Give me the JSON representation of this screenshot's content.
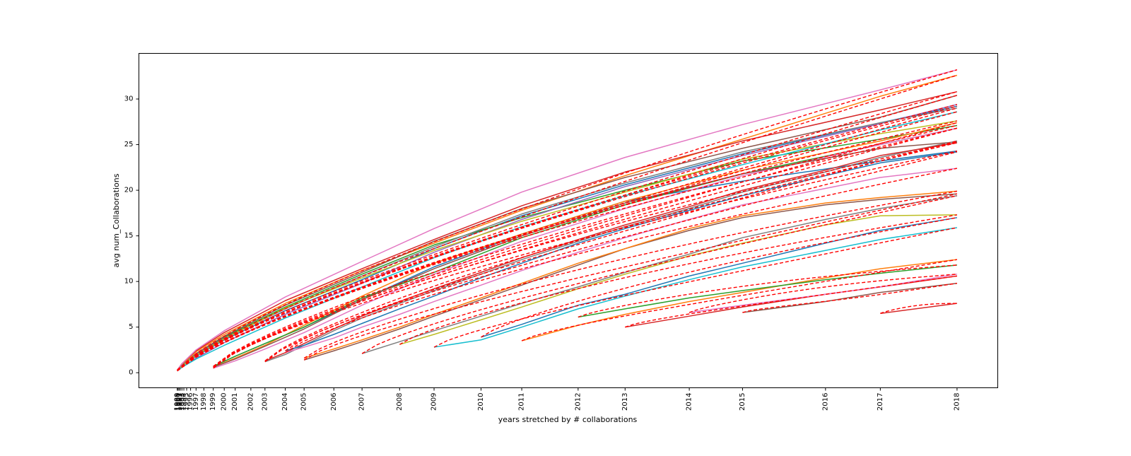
{
  "chart_data": {
    "type": "line",
    "title": "",
    "xlabel": "years stretched by # collaborations",
    "ylabel": "avg num_Collaborations",
    "x_ticks": [
      {
        "label": "1989",
        "pos": 0.0
      },
      {
        "label": "1990",
        "pos": 0.05
      },
      {
        "label": "1991",
        "pos": 0.12
      },
      {
        "label": "1992",
        "pos": 0.2
      },
      {
        "label": "1993",
        "pos": 0.3
      },
      {
        "label": "1994",
        "pos": 0.42
      },
      {
        "label": "1995",
        "pos": 0.6
      },
      {
        "label": "1996",
        "pos": 0.85
      },
      {
        "label": "1997",
        "pos": 1.2
      },
      {
        "label": "1998",
        "pos": 1.7
      },
      {
        "label": "1999",
        "pos": 2.3
      },
      {
        "label": "2000",
        "pos": 3.0
      },
      {
        "label": "2001",
        "pos": 3.7
      },
      {
        "label": "2002",
        "pos": 4.7
      },
      {
        "label": "2003",
        "pos": 5.6
      },
      {
        "label": "2004",
        "pos": 6.9
      },
      {
        "label": "2005",
        "pos": 8.1
      },
      {
        "label": "2006",
        "pos": 10.0
      },
      {
        "label": "2007",
        "pos": 11.8
      },
      {
        "label": "2008",
        "pos": 14.2
      },
      {
        "label": "2009",
        "pos": 16.4
      },
      {
        "label": "2010",
        "pos": 19.4
      },
      {
        "label": "2011",
        "pos": 22.0
      },
      {
        "label": "2012",
        "pos": 25.6
      },
      {
        "label": "2013",
        "pos": 28.6
      },
      {
        "label": "2014",
        "pos": 32.7
      },
      {
        "label": "2015",
        "pos": 36.1
      },
      {
        "label": "2016",
        "pos": 41.4
      },
      {
        "label": "2017",
        "pos": 44.9
      },
      {
        "label": "2018",
        "pos": 49.8
      }
    ],
    "xlim": [
      -2.45,
      52.4
    ],
    "y_ticks": [
      0,
      5,
      10,
      15,
      20,
      25,
      30
    ],
    "ylim": [
      -1.65,
      35.0
    ],
    "grid": false,
    "fit_color": "#ff0000",
    "series": [
      {
        "color": "#1f77b4",
        "x": [
          0.0,
          0.3,
          1.2,
          3.0,
          6.9,
          11.8,
          16.4,
          22.0,
          28.6,
          36.1,
          44.9,
          49.8
        ],
        "y": [
          0.3,
          0.8,
          1.8,
          3.6,
          6.8,
          10.2,
          13.6,
          17.2,
          20.6,
          24.0,
          27.4,
          29.2
        ]
      },
      {
        "color": "#ff7f0e",
        "x": [
          0.0,
          0.3,
          1.2,
          3.0,
          6.9,
          11.8,
          16.4,
          22.0,
          28.6,
          36.1,
          44.9,
          49.8
        ],
        "y": [
          0.2,
          0.9,
          2.3,
          4.2,
          7.6,
          11.2,
          14.2,
          17.8,
          21.6,
          25.6,
          30.3,
          32.6
        ]
      },
      {
        "color": "#2ca02c",
        "x": [
          0.0,
          0.3,
          1.2,
          3.0,
          6.9,
          11.8,
          16.4,
          22.0,
          28.6,
          36.1,
          44.9,
          49.8
        ],
        "y": [
          0.2,
          0.7,
          2.0,
          3.9,
          7.2,
          10.8,
          14.0,
          17.0,
          20.0,
          23.2,
          25.6,
          27.1
        ]
      },
      {
        "color": "#d62728",
        "x": [
          0.0,
          0.3,
          1.2,
          3.0,
          6.9,
          11.8,
          16.4,
          22.0,
          28.6,
          36.1,
          44.9,
          49.8
        ],
        "y": [
          0.3,
          1.0,
          2.4,
          4.4,
          7.9,
          11.4,
          14.6,
          18.3,
          22.0,
          25.4,
          28.8,
          30.8
        ]
      },
      {
        "color": "#9467bd",
        "x": [
          0.0,
          0.3,
          1.2,
          3.0,
          6.9,
          11.8,
          16.4,
          22.0,
          28.6,
          36.1,
          44.9,
          49.8
        ],
        "y": [
          0.2,
          0.6,
          1.6,
          3.3,
          6.4,
          9.8,
          13.2,
          16.8,
          20.4,
          23.8,
          27.3,
          29.4
        ]
      },
      {
        "color": "#8c564b",
        "x": [
          0.0,
          0.3,
          1.2,
          3.0,
          6.9,
          11.8,
          16.4,
          22.0,
          28.6,
          36.1,
          44.9,
          49.8
        ],
        "y": [
          0.2,
          0.8,
          2.1,
          4.0,
          7.4,
          11.0,
          14.4,
          18.0,
          21.4,
          24.6,
          28.0,
          30.4
        ]
      },
      {
        "color": "#e377c2",
        "x": [
          0.0,
          0.3,
          1.2,
          3.0,
          6.9,
          11.8,
          16.4,
          22.0,
          28.6,
          36.1,
          44.9,
          49.8
        ],
        "y": [
          0.3,
          1.0,
          2.5,
          4.6,
          8.3,
          12.2,
          15.8,
          19.8,
          23.6,
          27.2,
          31.0,
          33.2
        ]
      },
      {
        "color": "#7f7f7f",
        "x": [
          0.0,
          0.3,
          1.2,
          3.0,
          6.9,
          11.8,
          16.4,
          22.0,
          28.6,
          36.1,
          44.9,
          49.8
        ],
        "y": [
          0.2,
          0.8,
          2.0,
          3.8,
          7.0,
          10.6,
          13.8,
          17.4,
          20.8,
          24.2,
          27.4,
          29.0
        ]
      },
      {
        "color": "#bcbd22",
        "x": [
          0.0,
          0.3,
          1.2,
          3.0,
          6.9,
          11.8,
          16.4,
          22.0,
          28.6,
          36.1,
          44.9,
          49.8
        ],
        "y": [
          0.2,
          0.7,
          1.9,
          3.7,
          7.1,
          10.4,
          13.4,
          16.6,
          19.8,
          23.4,
          26.2,
          27.6
        ]
      },
      {
        "color": "#17becf",
        "x": [
          0.0,
          0.3,
          1.2,
          3.0,
          6.9,
          11.8,
          16.4,
          22.0,
          28.6,
          36.1,
          44.9,
          49.8
        ],
        "y": [
          0.2,
          0.6,
          1.5,
          3.0,
          6.0,
          9.4,
          12.6,
          16.0,
          19.4,
          22.8,
          26.6,
          28.6
        ]
      },
      {
        "color": "#1f77b4",
        "x": [
          2.3,
          3.7,
          5.6,
          8.1,
          11.8,
          16.4,
          22.0,
          28.6,
          36.1,
          44.9,
          49.8
        ],
        "y": [
          0.7,
          1.8,
          3.2,
          5.0,
          8.0,
          11.6,
          15.2,
          18.8,
          21.0,
          23.2,
          24.3
        ]
      },
      {
        "color": "#ff7f0e",
        "x": [
          2.3,
          3.7,
          5.6,
          8.1,
          11.8,
          16.4,
          22.0,
          28.6,
          36.1,
          44.9,
          49.8
        ],
        "y": [
          0.6,
          1.6,
          3.0,
          5.2,
          8.4,
          12.0,
          15.2,
          18.8,
          22.2,
          25.4,
          27.4
        ]
      },
      {
        "color": "#2ca02c",
        "x": [
          2.3,
          3.7,
          5.6,
          8.1,
          11.8,
          16.4,
          22.0,
          28.6,
          36.1,
          44.9,
          49.8
        ],
        "y": [
          0.7,
          1.8,
          3.2,
          5.0,
          8.2,
          11.0,
          14.8,
          18.4,
          21.8,
          25.0,
          26.8
        ]
      },
      {
        "color": "#e377c2",
        "x": [
          2.3,
          3.7,
          5.6,
          8.1,
          11.8,
          16.4,
          22.0,
          28.6,
          36.1,
          44.9,
          49.8
        ],
        "y": [
          0.5,
          1.3,
          2.6,
          4.4,
          7.4,
          10.8,
          14.4,
          18.0,
          21.6,
          25.0,
          26.8
        ]
      },
      {
        "color": "#8c564b",
        "x": [
          2.3,
          3.7,
          5.6,
          8.1,
          11.8,
          16.4,
          22.0,
          28.6,
          36.1,
          44.9,
          49.8
        ],
        "y": [
          0.6,
          1.5,
          2.9,
          4.8,
          8.0,
          11.4,
          15.0,
          18.6,
          21.8,
          24.6,
          25.3
        ]
      },
      {
        "color": "#7f7f7f",
        "x": [
          5.6,
          6.9,
          8.1,
          10.0,
          11.8,
          14.2,
          16.4,
          19.4,
          22.0,
          25.6,
          28.6,
          32.7,
          36.1,
          41.4,
          44.9,
          49.8
        ],
        "y": [
          1.2,
          2.0,
          3.0,
          4.6,
          6.0,
          7.6,
          9.0,
          10.8,
          12.4,
          14.4,
          16.0,
          18.0,
          19.8,
          22.0,
          23.6,
          25.4
        ]
      },
      {
        "color": "#d62728",
        "x": [
          5.6,
          6.9,
          8.1,
          10.0,
          11.8,
          14.2,
          16.4,
          19.4,
          22.0,
          25.6,
          28.6,
          32.7,
          36.1,
          41.4,
          44.9,
          49.8
        ],
        "y": [
          1.3,
          2.2,
          3.2,
          4.8,
          6.2,
          7.8,
          9.2,
          11.0,
          12.6,
          14.6,
          16.2,
          18.2,
          20.0,
          22.2,
          23.8,
          25.2
        ]
      },
      {
        "color": "#1f77b4",
        "x": [
          6.9,
          8.1,
          10.0,
          11.8,
          14.2,
          16.4,
          19.4,
          22.0,
          25.6,
          28.6,
          32.7,
          36.1,
          41.4,
          44.9,
          49.8
        ],
        "y": [
          2.4,
          3.0,
          4.2,
          5.4,
          7.0,
          8.4,
          10.4,
          12.0,
          14.2,
          15.8,
          17.8,
          19.4,
          21.6,
          23.0,
          24.2
        ]
      },
      {
        "color": "#e377c2",
        "x": [
          6.9,
          8.1,
          10.0,
          11.8,
          14.2,
          16.4,
          19.4,
          22.0,
          25.6,
          28.6,
          32.7,
          36.1,
          41.4,
          44.9,
          49.8
        ],
        "y": [
          2.2,
          2.8,
          3.8,
          5.0,
          6.4,
          7.8,
          9.6,
          11.2,
          13.2,
          14.8,
          16.8,
          18.4,
          20.2,
          21.4,
          22.4
        ]
      },
      {
        "color": "#8c564b",
        "x": [
          8.1,
          10.0,
          11.8,
          14.2,
          16.4,
          19.4,
          22.0,
          25.6,
          28.6,
          32.7,
          36.1,
          41.4,
          44.9,
          49.8
        ],
        "y": [
          1.4,
          2.4,
          3.4,
          4.8,
          6.2,
          8.0,
          9.6,
          11.8,
          13.6,
          15.6,
          17.0,
          18.4,
          19.0,
          19.6
        ]
      },
      {
        "color": "#ff7f0e",
        "x": [
          8.1,
          10.0,
          11.8,
          14.2,
          16.4,
          19.4,
          22.0,
          25.6,
          28.6,
          32.7,
          36.1,
          41.4,
          44.9,
          49.8
        ],
        "y": [
          1.6,
          2.6,
          3.6,
          5.0,
          6.4,
          8.2,
          9.8,
          12.0,
          13.6,
          15.8,
          17.2,
          18.6,
          19.2,
          19.9
        ]
      },
      {
        "color": "#7f7f7f",
        "x": [
          11.8,
          14.2,
          16.4,
          19.4,
          22.0,
          25.6,
          28.6,
          32.7,
          36.1,
          41.4,
          44.9,
          49.8
        ],
        "y": [
          2.1,
          3.4,
          4.6,
          6.2,
          7.6,
          9.4,
          11.0,
          13.0,
          14.8,
          16.8,
          18.0,
          19.4
        ]
      },
      {
        "color": "#bcbd22",
        "x": [
          14.2,
          16.4,
          19.4,
          22.0,
          25.6,
          28.6,
          32.7,
          36.1,
          41.4,
          44.9,
          49.8
        ],
        "y": [
          3.1,
          4.2,
          5.8,
          7.2,
          9.2,
          10.8,
          12.8,
          14.2,
          16.2,
          17.2,
          17.3
        ]
      },
      {
        "color": "#17becf",
        "x": [
          16.4,
          19.4,
          22.0,
          25.6,
          28.6,
          32.7,
          36.1,
          41.4,
          44.9,
          49.8
        ],
        "y": [
          2.8,
          3.6,
          5.0,
          7.0,
          8.4,
          10.2,
          11.6,
          13.4,
          14.6,
          15.9
        ]
      },
      {
        "color": "#1f77b4",
        "x": [
          19.4,
          22.0,
          25.6,
          28.6,
          32.7,
          36.1,
          41.4,
          44.9,
          49.8
        ],
        "y": [
          3.9,
          5.3,
          7.4,
          8.6,
          10.6,
          12.0,
          14.2,
          15.6,
          17.0
        ]
      },
      {
        "color": "#ff7f0e",
        "x": [
          22.0,
          25.6,
          28.6,
          32.7,
          36.1,
          41.4,
          44.9,
          49.8
        ],
        "y": [
          3.5,
          5.2,
          6.4,
          7.8,
          8.8,
          10.4,
          11.4,
          12.4
        ]
      },
      {
        "color": "#2ca02c",
        "x": [
          25.6,
          28.6,
          32.7,
          36.1,
          41.4,
          44.9,
          49.8
        ],
        "y": [
          6.1,
          7.0,
          8.2,
          9.0,
          10.2,
          10.9,
          11.8
        ]
      },
      {
        "color": "#d62728",
        "x": [
          28.6,
          32.7,
          36.1,
          41.4,
          44.9,
          49.8
        ],
        "y": [
          5.0,
          6.2,
          7.2,
          8.6,
          9.4,
          10.6
        ]
      },
      {
        "color": "#e377c2",
        "x": [
          32.7,
          36.1,
          41.4,
          44.9,
          49.8
        ],
        "y": [
          6.6,
          7.4,
          8.6,
          9.4,
          10.8
        ]
      },
      {
        "color": "#8c564b",
        "x": [
          36.1,
          41.4,
          44.9,
          49.8
        ],
        "y": [
          6.6,
          7.8,
          8.8,
          9.8
        ]
      },
      {
        "color": "#d62728",
        "x": [
          44.9,
          49.8
        ],
        "y": [
          6.5,
          7.6
        ]
      }
    ]
  }
}
